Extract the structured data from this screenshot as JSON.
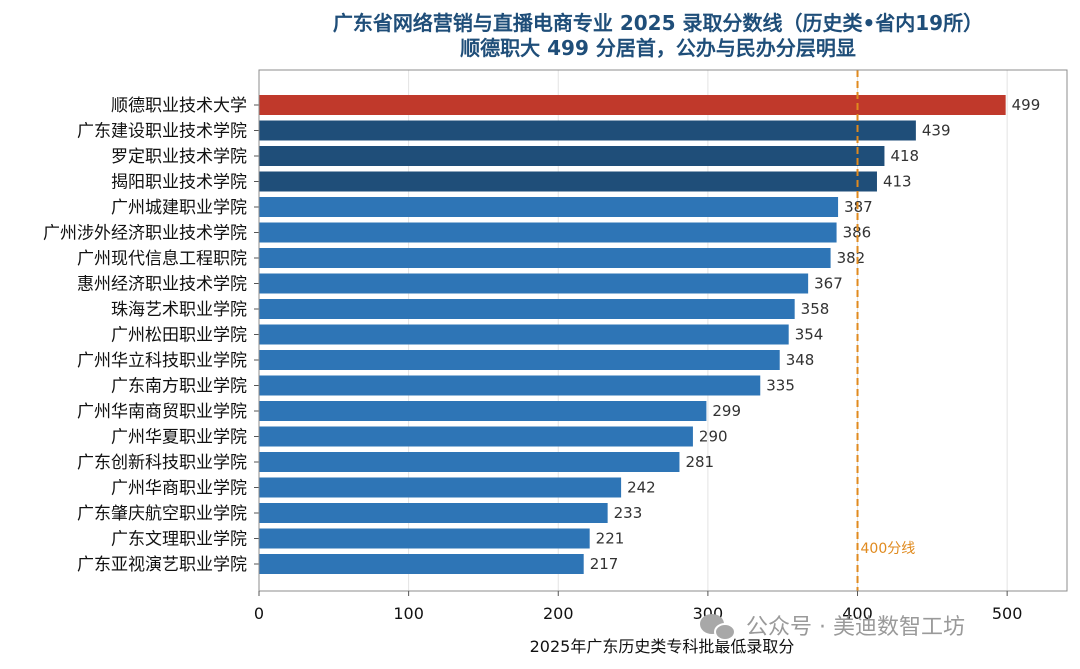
{
  "chart_data": {
    "type": "bar",
    "orientation": "horizontal",
    "title": "广东省网络营销与直播电商专业 2025 录取分数线（历史类•省内19所）",
    "subtitle": "顺德职大 499 分居首，公办与民办分层明显",
    "xlabel": "2025年广东历史类专科批最低录取分",
    "xlim": [
      0,
      540
    ],
    "xticks": [
      0,
      100,
      200,
      300,
      400,
      500
    ],
    "grid": "x",
    "categories": [
      "顺德职业技术大学",
      "广东建设职业技术学院",
      "罗定职业技术学院",
      "揭阳职业技术学院",
      "广州城建职业学院",
      "广州涉外经济职业技术学院",
      "广州现代信息工程职院",
      "惠州经济职业技术学院",
      "珠海艺术职业学院",
      "广州松田职业学院",
      "广州华立科技职业学院",
      "广东南方职业学院",
      "广州华南商贸职业学院",
      "广州华夏职业学院",
      "广东创新科技职业学院",
      "广州华商职业学院",
      "广东肇庆航空职业学院",
      "广东文理职业学院",
      "广东亚视演艺职业学院"
    ],
    "values": [
      499,
      439,
      418,
      413,
      387,
      386,
      382,
      367,
      358,
      354,
      348,
      335,
      299,
      290,
      281,
      242,
      233,
      221,
      217
    ],
    "bar_colors": [
      "#c0392b",
      "#1f4e79",
      "#1f4e79",
      "#1f4e79",
      "#2e75b6",
      "#2e75b6",
      "#2e75b6",
      "#2e75b6",
      "#2e75b6",
      "#2e75b6",
      "#2e75b6",
      "#2e75b6",
      "#2e75b6",
      "#2e75b6",
      "#2e75b6",
      "#2e75b6",
      "#2e75b6",
      "#2e75b6",
      "#2e75b6"
    ],
    "reference_line": {
      "value": 400,
      "label": "400分线",
      "color": "#e08a1e",
      "style": "dashed"
    }
  },
  "watermark": "公众号 · 美迪数智工坊"
}
